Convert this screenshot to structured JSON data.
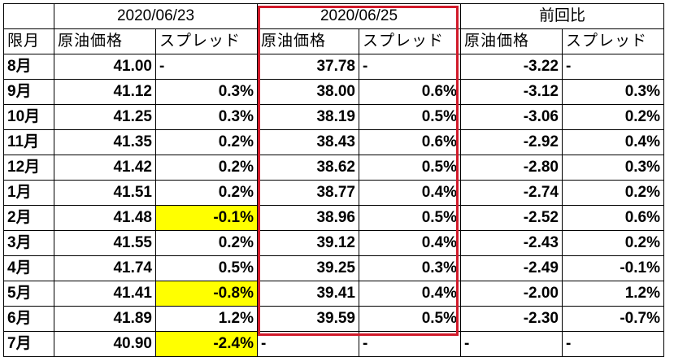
{
  "dates": {
    "d1": "2020/06/23",
    "d2": "2020/06/25",
    "diff": "前回比"
  },
  "subheaders": {
    "month": "限月",
    "price1": "原油価格",
    "spread1": "スプレッド",
    "price2": "原油価格",
    "spread2": "スプレッド",
    "price3": "原油価格",
    "spread3": "スプレッド"
  },
  "colors": {
    "highlight_fill": "#ffff00",
    "highlight_border": "#d11a2a"
  },
  "rows": [
    {
      "month": "8月",
      "p1": "41.00",
      "s1": "-",
      "p2": "37.78",
      "s2": "-",
      "p3": "-3.22",
      "s3": "-"
    },
    {
      "month": "9月",
      "p1": "41.12",
      "s1": "0.3%",
      "p2": "38.00",
      "s2": "0.6%",
      "p3": "-3.12",
      "s3": "0.3%"
    },
    {
      "month": "10月",
      "p1": "41.25",
      "s1": "0.3%",
      "p2": "38.19",
      "s2": "0.5%",
      "p3": "-3.06",
      "s3": "0.2%"
    },
    {
      "month": "11月",
      "p1": "41.35",
      "s1": "0.2%",
      "p2": "38.43",
      "s2": "0.6%",
      "p3": "-2.92",
      "s3": "0.4%"
    },
    {
      "month": "12月",
      "p1": "41.42",
      "s1": "0.2%",
      "p2": "38.62",
      "s2": "0.5%",
      "p3": "-2.80",
      "s3": "0.3%"
    },
    {
      "month": "1月",
      "p1": "41.51",
      "s1": "0.2%",
      "p2": "38.77",
      "s2": "0.4%",
      "p3": "-2.74",
      "s3": "0.2%"
    },
    {
      "month": "2月",
      "p1": "41.48",
      "s1": "-0.1%",
      "p2": "38.96",
      "s2": "0.5%",
      "p3": "-2.52",
      "s3": "0.6%"
    },
    {
      "month": "3月",
      "p1": "41.55",
      "s1": "0.2%",
      "p2": "39.12",
      "s2": "0.4%",
      "p3": "-2.43",
      "s3": "0.2%"
    },
    {
      "month": "4月",
      "p1": "41.74",
      "s1": "0.5%",
      "p2": "39.25",
      "s2": "0.3%",
      "p3": "-2.49",
      "s3": "-0.1%"
    },
    {
      "month": "5月",
      "p1": "41.41",
      "s1": "-0.8%",
      "p2": "39.41",
      "s2": "0.4%",
      "p3": "-2.00",
      "s3": "1.2%"
    },
    {
      "month": "6月",
      "p1": "41.89",
      "s1": "1.2%",
      "p2": "39.59",
      "s2": "0.5%",
      "p3": "-2.30",
      "s3": "-0.7%"
    },
    {
      "month": "7月",
      "p1": "40.90",
      "s1": "-2.4%",
      "p2": "-",
      "s2": "-",
      "p3": "-",
      "s3": "-"
    }
  ]
}
